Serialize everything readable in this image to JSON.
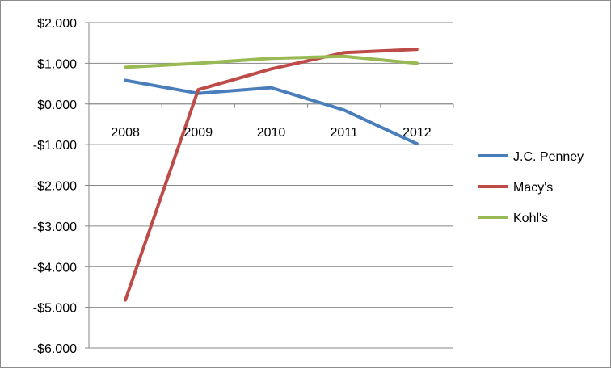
{
  "chart_data": {
    "type": "line",
    "title": "",
    "xlabel": "",
    "ylabel": "",
    "categories": [
      "2008",
      "2009",
      "2010",
      "2011",
      "2012"
    ],
    "ylim": [
      -6,
      2
    ],
    "y_ticks": [
      2,
      1,
      0,
      -1,
      -2,
      -3,
      -4,
      -5,
      -6
    ],
    "y_tick_labels": [
      "$2.000",
      "$1.000",
      "$0.000",
      "-$1.000",
      "-$2.000",
      "-$3.000",
      "-$4.000",
      "-$5.000",
      "-$6.000"
    ],
    "grid": "horizontal",
    "legend_position": "right",
    "series": [
      {
        "name": "J.C. Penney",
        "color": "#4a7ebb",
        "values": [
          0.58,
          0.26,
          0.4,
          -0.15,
          -0.98
        ]
      },
      {
        "name": "Macy's",
        "color": "#be4b48",
        "values": [
          -4.82,
          0.35,
          0.86,
          1.26,
          1.34
        ]
      },
      {
        "name": "Kohl's",
        "color": "#98b954",
        "values": [
          0.9,
          1.0,
          1.12,
          1.17,
          1.0
        ]
      }
    ]
  }
}
